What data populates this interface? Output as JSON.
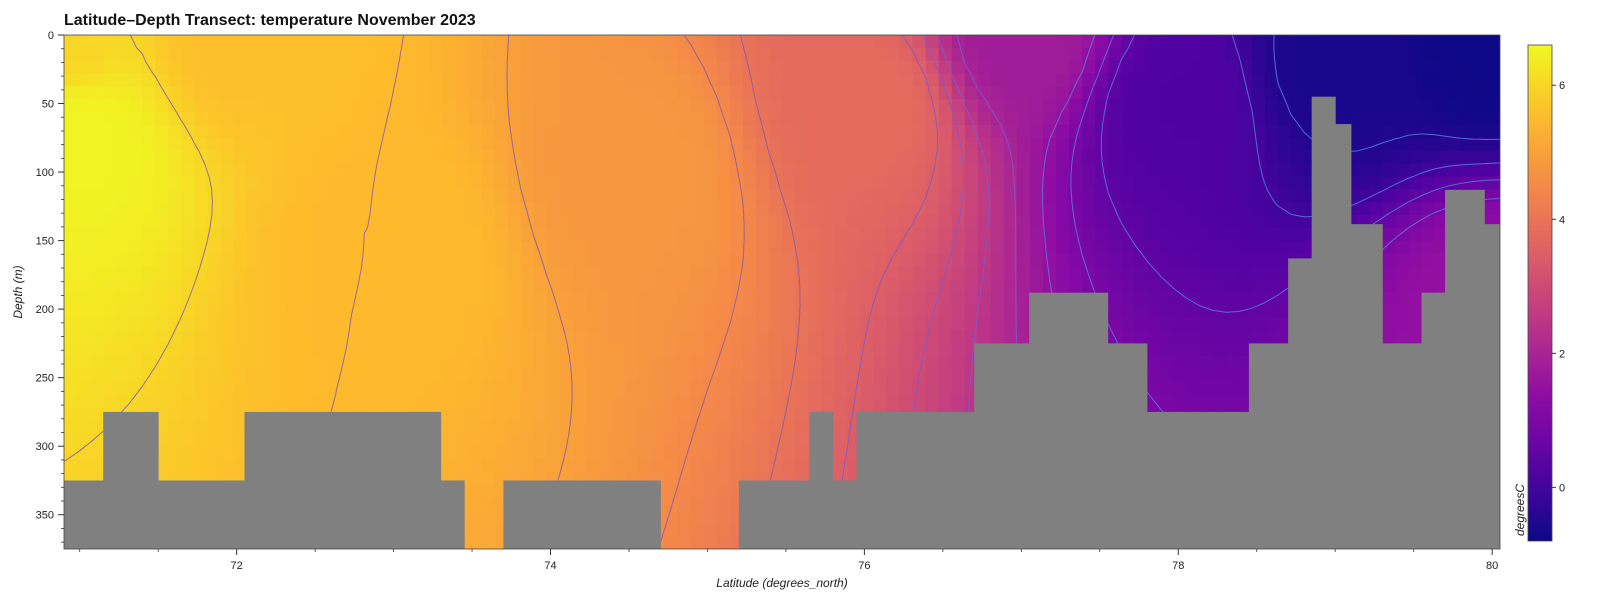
{
  "chart_data": {
    "type": "heatmap",
    "title": "Latitude–Depth Transect: temperature November 2023",
    "xlabel": "Latitude (degrees_north)",
    "ylabel": "Depth (m)",
    "xlim": [
      70.9,
      80.05
    ],
    "ylim": [
      0,
      375
    ],
    "y_inverted": true,
    "xticks": [
      72,
      74,
      76,
      78,
      80
    ],
    "yticks": [
      0,
      50,
      100,
      150,
      200,
      250,
      300,
      350
    ],
    "colorbar": {
      "label": "degreesC",
      "colormap": "plasma",
      "range": [
        -0.8,
        6.6
      ],
      "ticks": [
        0,
        2,
        4,
        6
      ]
    },
    "land_color": "#808080",
    "temperature_control_points": [
      {
        "lat": 70.9,
        "depth": 0,
        "value": 6.0
      },
      {
        "lat": 71.0,
        "depth": 75,
        "value": 6.5
      },
      {
        "lat": 72.0,
        "depth": 0,
        "value": 5.6
      },
      {
        "lat": 73.0,
        "depth": 150,
        "value": 5.5
      },
      {
        "lat": 74.5,
        "depth": 100,
        "value": 4.8
      },
      {
        "lat": 76.0,
        "depth": 50,
        "value": 3.8
      },
      {
        "lat": 77.0,
        "depth": 0,
        "value": 1.8
      },
      {
        "lat": 78.0,
        "depth": 50,
        "value": 0.2
      },
      {
        "lat": 79.0,
        "depth": 20,
        "value": -0.6
      },
      {
        "lat": 80.0,
        "depth": 0,
        "value": -0.8
      },
      {
        "lat": 80.0,
        "depth": 200,
        "value": 1.5
      }
    ],
    "seafloor_depth_by_latitude": [
      {
        "lat": [
          70.9,
          71.15
        ],
        "depth": 325
      },
      {
        "lat": [
          71.15,
          71.5
        ],
        "depth": 275
      },
      {
        "lat": [
          71.5,
          72.05
        ],
        "depth": 325
      },
      {
        "lat": [
          72.05,
          73.3
        ],
        "depth": 275
      },
      {
        "lat": [
          73.3,
          73.45
        ],
        "depth": 325
      },
      {
        "lat": [
          73.45,
          73.7
        ],
        "depth": 375
      },
      {
        "lat": [
          73.7,
          74.7
        ],
        "depth": 325
      },
      {
        "lat": [
          74.7,
          75.2
        ],
        "depth": 375
      },
      {
        "lat": [
          75.2,
          75.65
        ],
        "depth": 325
      },
      {
        "lat": [
          75.65,
          75.8
        ],
        "depth": 275
      },
      {
        "lat": [
          75.8,
          75.95
        ],
        "depth": 325
      },
      {
        "lat": [
          75.95,
          76.7
        ],
        "depth": 275
      },
      {
        "lat": [
          76.7,
          77.05
        ],
        "depth": 225
      },
      {
        "lat": [
          77.05,
          77.55
        ],
        "depth": 188
      },
      {
        "lat": [
          77.55,
          77.8
        ],
        "depth": 225
      },
      {
        "lat": [
          77.8,
          78.45
        ],
        "depth": 275
      },
      {
        "lat": [
          78.45,
          78.7
        ],
        "depth": 225
      },
      {
        "lat": [
          78.7,
          78.85
        ],
        "depth": 163
      },
      {
        "lat": [
          78.85,
          79.0
        ],
        "depth": 45
      },
      {
        "lat": [
          79.0,
          79.1
        ],
        "depth": 65
      },
      {
        "lat": [
          79.1,
          79.3
        ],
        "depth": 138
      },
      {
        "lat": [
          79.3,
          79.55
        ],
        "depth": 225
      },
      {
        "lat": [
          79.55,
          79.7
        ],
        "depth": 188
      },
      {
        "lat": [
          79.7,
          79.95
        ],
        "depth": 113
      },
      {
        "lat": [
          79.95,
          80.05
        ],
        "depth": 138
      }
    ],
    "contour_levels": [
      -0.5,
      0,
      0.5,
      1,
      1.5,
      2,
      2.5,
      3,
      3.5,
      4,
      4.5,
      5,
      5.5,
      6
    ]
  }
}
